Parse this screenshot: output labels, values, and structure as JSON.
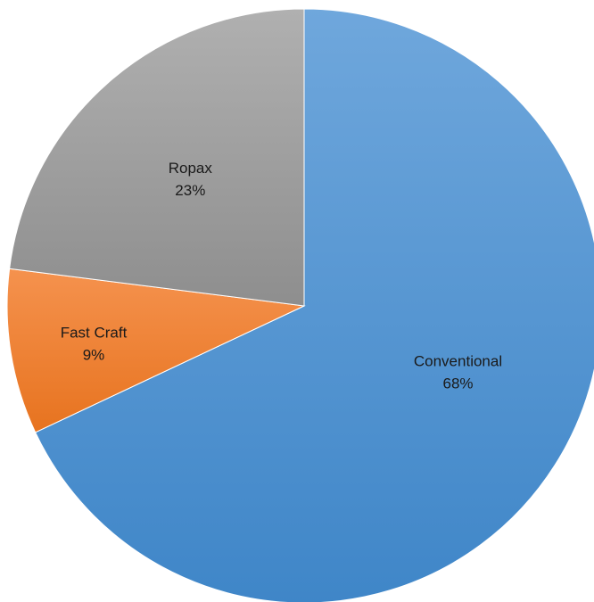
{
  "chart_data": {
    "type": "pie",
    "title": "",
    "slices": [
      {
        "label": "Conventional",
        "percent_label": "68%",
        "value": 68,
        "color_light": "#6fa7dc",
        "color_dark": "#3f86c8"
      },
      {
        "label": "Fast Craft",
        "percent_label": "9%",
        "value": 9,
        "color_light": "#f5924e",
        "color_dark": "#e7731f"
      },
      {
        "label": "Ropax",
        "percent_label": "23%",
        "value": 23,
        "color_light": "#b0b0b0",
        "color_dark": "#8e8e8e"
      }
    ],
    "legend": "none",
    "start": "top, clockwise"
  }
}
